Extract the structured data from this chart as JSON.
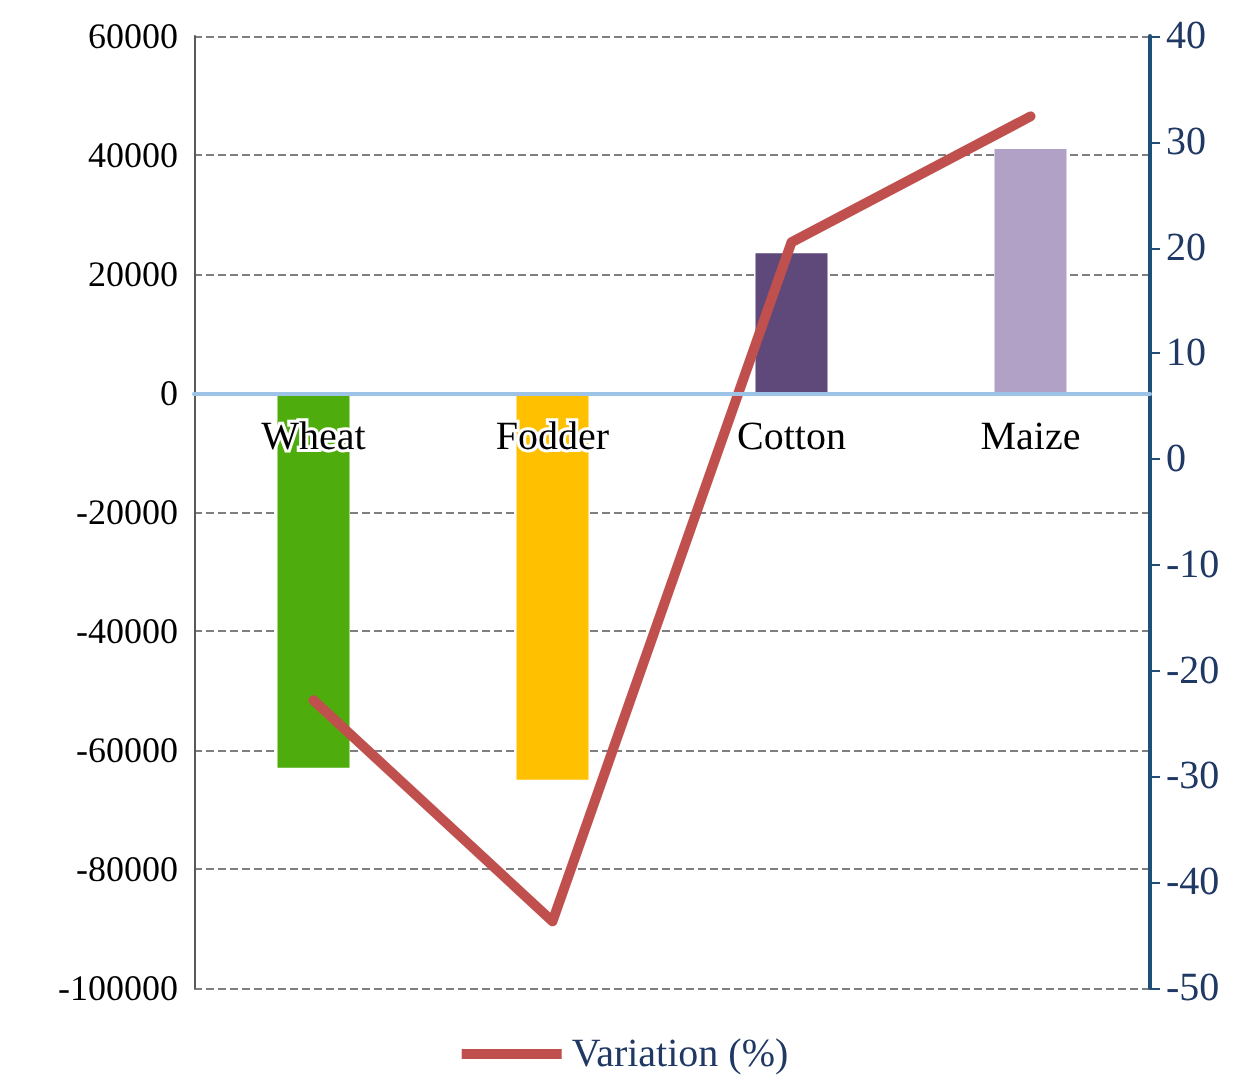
{
  "chart_data": {
    "type": "bar",
    "categories": [
      "Wheat",
      "Fodder",
      "Cotton",
      "Maize"
    ],
    "series": [
      {
        "colors": [
          "#4eac0c",
          "#ffc000",
          "#5f497a",
          "#b2a1c7"
        ],
        "values": [
          -63000,
          -65000,
          23500,
          41000
        ]
      },
      {
        "type": "line",
        "name": "Variation (%)",
        "color": "#c0504d",
        "axis": "y2",
        "values": [
          -22.8,
          -43.7,
          20.5,
          32.4
        ]
      }
    ],
    "ylim": [
      -100000,
      60000
    ],
    "yticks": [
      -100000,
      -80000,
      -60000,
      -40000,
      -20000,
      0,
      20000,
      40000,
      60000
    ],
    "y2lim": [
      -50,
      40
    ],
    "y2ticks": [
      -50,
      -40,
      -30,
      -20,
      -10,
      0,
      10,
      20,
      30,
      40
    ],
    "grid": "y",
    "legend": "bottom",
    "marker": "none"
  }
}
